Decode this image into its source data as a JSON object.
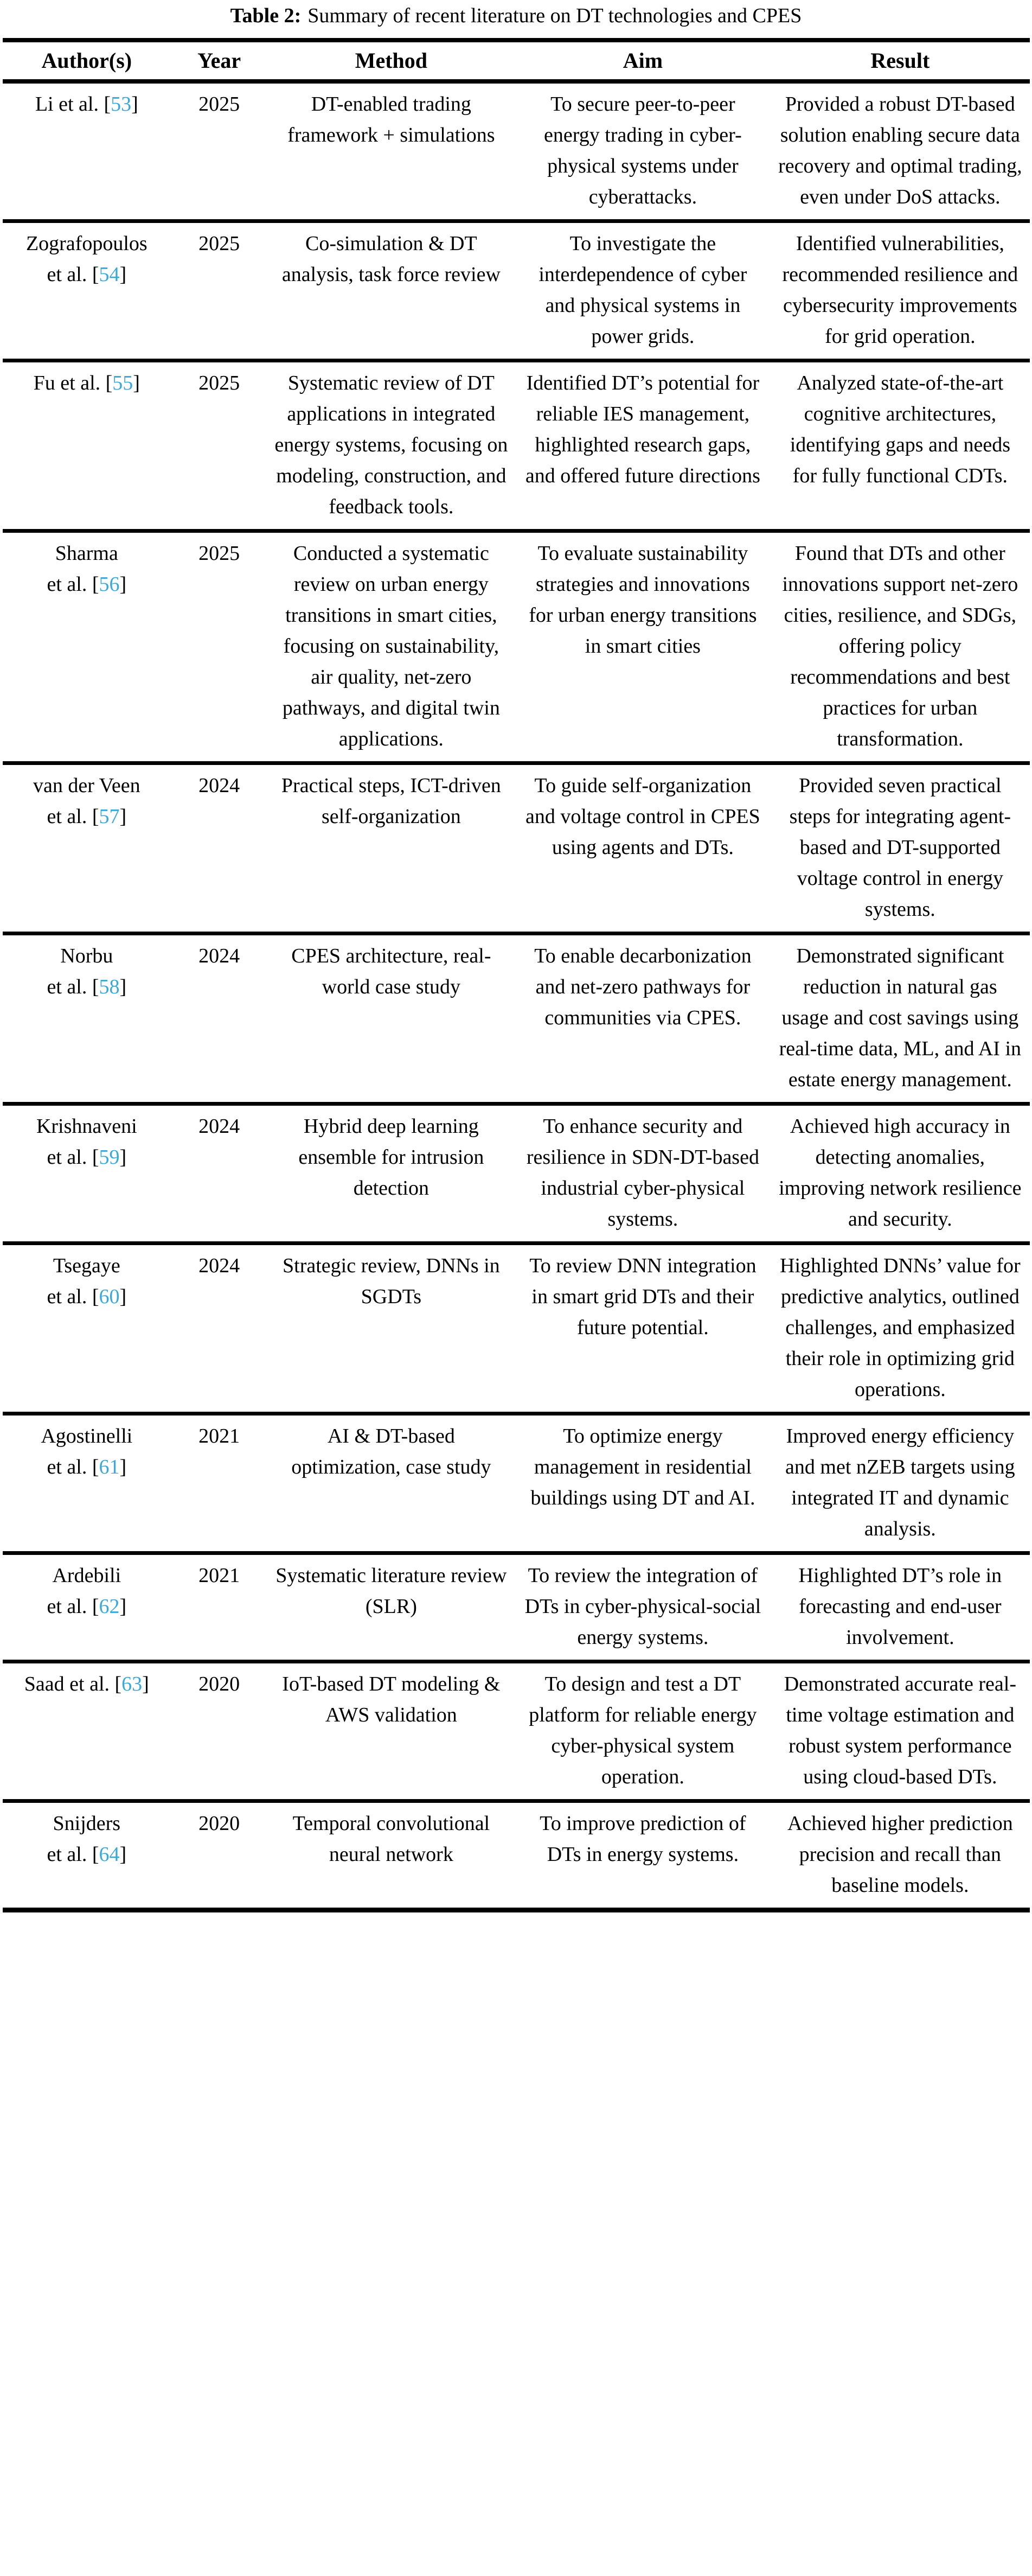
{
  "page": {
    "background": "#ffffff",
    "text_color": "#000000"
  },
  "title": {
    "label": "Table 2:",
    "text": "Summary of recent literature on DT technologies and CPES"
  },
  "columns": [
    "Author(s)",
    "Year",
    "Method",
    "Aim",
    "Result"
  ],
  "citation": {
    "color": "#3AA8DA",
    "open": "[",
    "close": "]"
  },
  "rows": [
    {
      "author": "Li et al.",
      "ref": "53",
      "year": "2025",
      "method": "DT-enabled trading framework + simulations",
      "aim": "To secure peer-to-peer energy trading in cyber-physical systems under cyberattacks.",
      "result": "Provided a robust DT-based solution enabling secure data recovery and optimal trading, even under DoS attacks."
    },
    {
      "author": "Zografopoulos\net al.",
      "ref": "54",
      "year": "2025",
      "method": "Co-simulation & DT analysis, task force review",
      "aim": "To investigate the interdependence of cyber and physical systems in power grids.",
      "result": "Identified vulnerabilities, recommended resilience and cybersecurity improvements for grid operation."
    },
    {
      "author": "Fu et al.",
      "ref": "55",
      "year": "2025",
      "method": "Systematic review of DT applications in integrated energy systems, focusing on modeling, construction, and feedback tools.",
      "aim": "Identified DT’s potential for reliable IES management, highlighted research gaps, and offered future directions",
      "result": "Analyzed state-of-the-art cognitive architectures, identifying gaps and needs for fully functional CDTs."
    },
    {
      "author": "Sharma\net al.",
      "ref": "56",
      "year": "2025",
      "method": "Conducted a systematic review on urban energy transitions in smart cities, focusing on sustainability, air quality, net-zero pathways, and digital twin applications.",
      "aim": "To evaluate sustainability strategies and innovations for urban energy transitions in smart cities",
      "result": "Found that DTs and other innovations support net-zero cities, resilience, and SDGs, offering policy recommendations and best practices for urban transformation."
    },
    {
      "author": "van der Veen\net al.",
      "ref": "57",
      "year": "2024",
      "method": "Practical steps, ICT-driven self-organization",
      "aim": "To guide self-organization and voltage control in CPES using agents and DTs.",
      "result": "Provided seven practical steps for integrating agent-based and DT-supported voltage control in energy systems."
    },
    {
      "author": "Norbu\net al.",
      "ref": "58",
      "year": "2024",
      "method": "CPES architecture, real-world case study",
      "aim": "To enable decarbonization and net-zero pathways for communities via CPES.",
      "result": "Demonstrated significant reduction in natural gas usage and cost savings using real-time data, ML, and AI in estate energy management."
    },
    {
      "author": "Krishnaveni\net al.",
      "ref": "59",
      "year": "2024",
      "method": "Hybrid deep learning ensemble for intrusion detection",
      "aim": "To enhance security and resilience in SDN-DT-based industrial cyber-physical systems.",
      "result": "Achieved high accuracy in detecting anomalies, improving network resilience and security."
    },
    {
      "author": "Tsegaye\net al.",
      "ref": "60",
      "year": "2024",
      "method": "Strategic review, DNNs in SGDTs",
      "aim": "To review DNN integration in smart grid DTs and their future potential.",
      "result": "Highlighted DNNs’ value for predictive analytics, outlined challenges, and emphasized their role in optimizing grid operations."
    },
    {
      "author": "Agostinelli\net al.",
      "ref": "61",
      "year": "2021",
      "method": "AI & DT-based optimization, case study",
      "aim": "To optimize energy management in residential buildings using DT and AI.",
      "result": "Improved energy efficiency and met nZEB targets using integrated IT and dynamic analysis."
    },
    {
      "author": "Ardebili\net al.",
      "ref": "62",
      "year": "2021",
      "method": "Systematic literature review (SLR)",
      "aim": "To review the integration of DTs in cyber-physical-social energy systems.",
      "result": "Highlighted DT’s role in forecasting and end-user involvement."
    },
    {
      "author": "Saad et al.",
      "ref": "63",
      "year": "2020",
      "method": "IoT-based DT modeling & AWS validation",
      "aim": "To design and test a DT platform for reliable energy cyber-physical system operation.",
      "result": "Demonstrated accurate real-time voltage estimation and robust system performance using cloud-based DTs."
    },
    {
      "author": "Snijders\net al.",
      "ref": "64",
      "year": "2020",
      "method": "Temporal convolutional neural network",
      "aim": "To improve prediction of DTs in energy systems.",
      "result": "Achieved higher prediction precision and recall than baseline models."
    }
  ]
}
